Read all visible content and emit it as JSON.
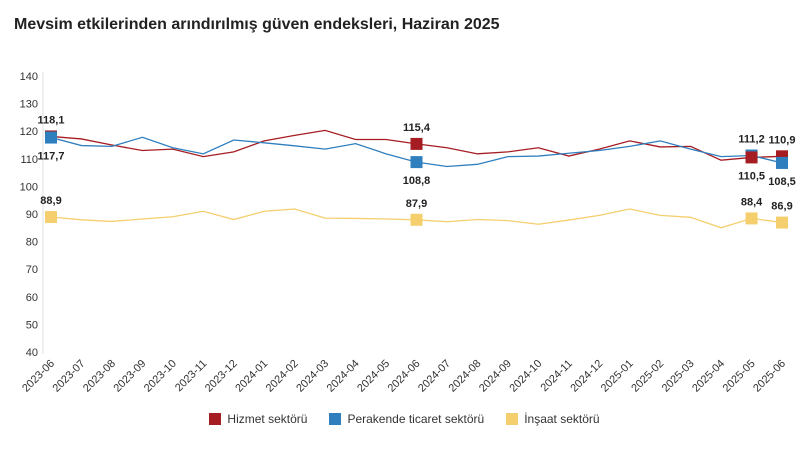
{
  "title": "Mevsim etkilerinden arındırılmış güven endeksleri, Haziran 2025",
  "chart_data": {
    "type": "line",
    "title": "Mevsim etkilerinden arındırılmış güven endeksleri, Haziran 2025",
    "xlabel": "",
    "ylabel": "",
    "ylim": [
      40,
      140
    ],
    "yticks": [
      40,
      50,
      60,
      70,
      80,
      90,
      100,
      110,
      120,
      130,
      140
    ],
    "grid": false,
    "legend_position": "bottom",
    "categories": [
      "2023-06",
      "2023-07",
      "2023-08",
      "2023-09",
      "2023-10",
      "2023-11",
      "2023-12",
      "2024-01",
      "2024-02",
      "2024-03",
      "2024-04",
      "2024-05",
      "2024-06",
      "2024-07",
      "2024-08",
      "2024-09",
      "2024-10",
      "2024-11",
      "2024-12",
      "2025-01",
      "2025-02",
      "2025-03",
      "2025-04",
      "2025-05",
      "2025-06"
    ],
    "series": [
      {
        "name": "Hizmet sektörü",
        "color": "#a51d22",
        "values": [
          118.1,
          117.2,
          115.0,
          113.0,
          113.5,
          110.8,
          112.5,
          116.5,
          118.5,
          120.3,
          117.0,
          117.0,
          115.4,
          114.0,
          111.8,
          112.5,
          114.0,
          111.0,
          113.5,
          116.5,
          114.3,
          114.5,
          109.5,
          110.5,
          110.9
        ]
      },
      {
        "name": "Perakende ticaret sektörü",
        "color": "#2f7fbf",
        "values": [
          117.7,
          114.8,
          114.5,
          117.8,
          114.0,
          111.8,
          116.8,
          115.8,
          114.7,
          113.5,
          115.5,
          111.8,
          108.8,
          107.2,
          108.0,
          110.8,
          111.0,
          112.0,
          113.0,
          114.5,
          116.5,
          113.5,
          110.8,
          111.2,
          108.5
        ]
      },
      {
        "name": "İnşaat sektörü",
        "color": "#f5cf6e",
        "values": [
          88.9,
          87.9,
          87.3,
          88.2,
          89.0,
          91.0,
          88.0,
          91.0,
          91.8,
          88.5,
          88.4,
          88.2,
          87.9,
          87.2,
          88.0,
          87.6,
          86.3,
          87.8,
          89.5,
          91.8,
          89.5,
          88.8,
          85.0,
          88.4,
          86.9
        ]
      }
    ],
    "data_labels": [
      {
        "series": 0,
        "index": 0,
        "text": "118,1",
        "pos": "above"
      },
      {
        "series": 1,
        "index": 0,
        "text": "117,7",
        "pos": "below"
      },
      {
        "series": 2,
        "index": 0,
        "text": "88,9",
        "pos": "above"
      },
      {
        "series": 0,
        "index": 12,
        "text": "115,4",
        "pos": "above"
      },
      {
        "series": 1,
        "index": 12,
        "text": "108,8",
        "pos": "below"
      },
      {
        "series": 2,
        "index": 12,
        "text": "87,9",
        "pos": "above"
      },
      {
        "series": 1,
        "index": 23,
        "text": "111,2",
        "pos": "above"
      },
      {
        "series": 0,
        "index": 23,
        "text": "110,5",
        "pos": "below"
      },
      {
        "series": 2,
        "index": 23,
        "text": "88,4",
        "pos": "above"
      },
      {
        "series": 0,
        "index": 24,
        "text": "110,9",
        "pos": "above"
      },
      {
        "series": 1,
        "index": 24,
        "text": "108,5",
        "pos": "below"
      },
      {
        "series": 2,
        "index": 24,
        "text": "86,9",
        "pos": "above"
      }
    ]
  }
}
